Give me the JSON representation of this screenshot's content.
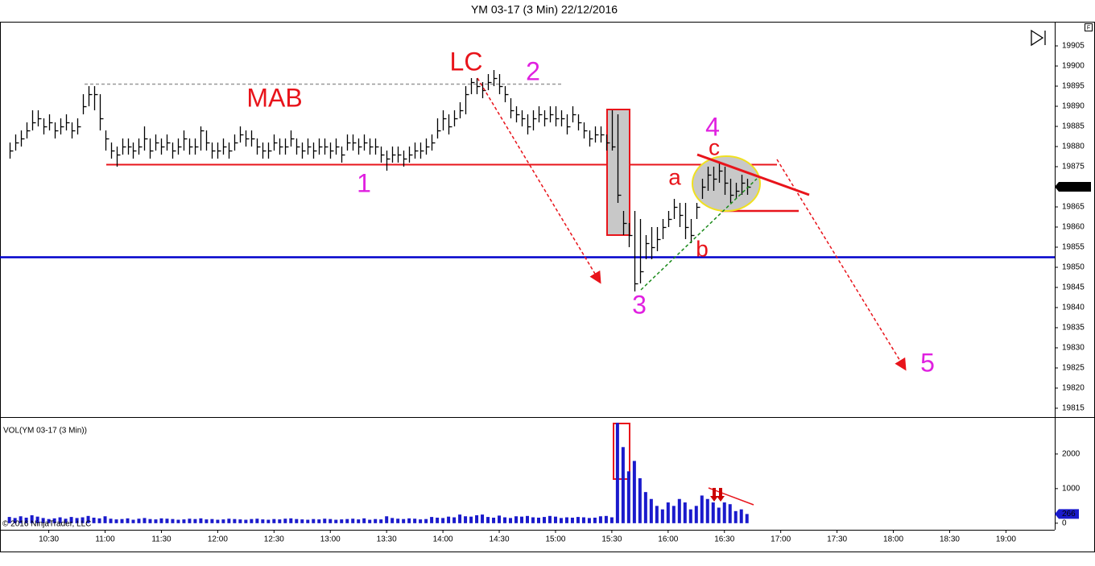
{
  "chart_data": {
    "type": "ohlc",
    "title": "YM 03-17 (3 Min)  22/12/2016",
    "copyright": "© 2016 NinjaTrader, LLC",
    "color": "#000000",
    "x": [
      "10:09",
      "10:12",
      "10:15",
      "10:18",
      "10:21",
      "10:24",
      "10:27",
      "10:30",
      "10:33",
      "10:36",
      "10:39",
      "10:42",
      "10:45",
      "10:48",
      "10:51",
      "10:54",
      "10:57",
      "11:00",
      "11:03",
      "11:06",
      "11:09",
      "11:12",
      "11:15",
      "11:18",
      "11:21",
      "11:24",
      "11:27",
      "11:30",
      "11:33",
      "11:36",
      "11:39",
      "11:42",
      "11:45",
      "11:48",
      "11:51",
      "11:54",
      "11:57",
      "12:00",
      "12:03",
      "12:06",
      "12:09",
      "12:12",
      "12:15",
      "12:18",
      "12:21",
      "12:24",
      "12:27",
      "12:30",
      "12:33",
      "12:36",
      "12:39",
      "12:42",
      "12:45",
      "12:48",
      "12:51",
      "12:54",
      "12:57",
      "13:00",
      "13:03",
      "13:06",
      "13:09",
      "13:12",
      "13:15",
      "13:18",
      "13:21",
      "13:24",
      "13:27",
      "13:30",
      "13:33",
      "13:36",
      "13:39",
      "13:42",
      "13:45",
      "13:48",
      "13:51",
      "13:54",
      "13:57",
      "14:00",
      "14:03",
      "14:06",
      "14:09",
      "14:12",
      "14:15",
      "14:18",
      "14:21",
      "14:24",
      "14:27",
      "14:30",
      "14:33",
      "14:36",
      "14:39",
      "14:42",
      "14:45",
      "14:48",
      "14:51",
      "14:54",
      "14:57",
      "15:00",
      "15:03",
      "15:06",
      "15:09",
      "15:12",
      "15:15",
      "15:18",
      "15:21",
      "15:24",
      "15:27",
      "15:30",
      "15:33",
      "15:36",
      "15:39",
      "15:42",
      "15:45",
      "15:48",
      "15:51",
      "15:54",
      "15:57",
      "16:00",
      "16:03",
      "16:06",
      "16:09",
      "16:12",
      "16:15",
      "16:18",
      "16:21",
      "16:24",
      "16:27",
      "16:30",
      "16:33",
      "16:36",
      "16:39",
      "16:42"
    ],
    "high": [
      19881,
      19883,
      19884,
      19886,
      19889,
      19889,
      19887,
      19888,
      19886,
      19887,
      19888,
      19886,
      19887,
      19893,
      19895,
      19895,
      19893,
      19884,
      19881,
      19880,
      19882,
      19882,
      19881,
      19882,
      19885,
      19882,
      19883,
      19882,
      19883,
      19881,
      19882,
      19884,
      19882,
      19882,
      19885,
      19884,
      19881,
      19881,
      19882,
      19881,
      19883,
      19885,
      19884,
      19884,
      19882,
      19881,
      19881,
      19883,
      19882,
      19882,
      19884,
      19882,
      19881,
      19882,
      19881,
      19882,
      19882,
      19881,
      19882,
      19880,
      19883,
      19883,
      19882,
      19883,
      19882,
      19882,
      19880,
      19879,
      19880,
      19880,
      19879,
      19880,
      19881,
      19881,
      19882,
      19883,
      19887,
      19889,
      19888,
      19889,
      19891,
      19895,
      19897,
      19897,
      19896,
      19898,
      19899,
      19898,
      19895,
      19892,
      19890,
      19889,
      19888,
      19889,
      19890,
      19889,
      19890,
      19890,
      19889,
      19888,
      19890,
      19888,
      19886,
      19884,
      19885,
      19885,
      19883,
      19889,
      19888,
      19864,
      19861,
      19864,
      19862,
      19858,
      19860,
      19860,
      19862,
      19864,
      19867,
      19866,
      19866,
      19862,
      19866,
      19872,
      19875,
      19875,
      19876,
      19875,
      19872,
      19871,
      19873,
      19872
    ],
    "low": [
      19877,
      19879,
      19880,
      19882,
      19884,
      19885,
      19883,
      19884,
      19882,
      19883,
      19884,
      19882,
      19883,
      19888,
      19890,
      19889,
      19884,
      19879,
      19877,
      19875,
      19878,
      19878,
      19877,
      19878,
      19879,
      19877,
      19879,
      19878,
      19879,
      19877,
      19878,
      19879,
      19878,
      19878,
      19879,
      19879,
      19877,
      19877,
      19878,
      19877,
      19879,
      19881,
      19880,
      19880,
      19878,
      19877,
      19877,
      19879,
      19878,
      19878,
      19880,
      19878,
      19877,
      19878,
      19877,
      19878,
      19878,
      19877,
      19878,
      19876,
      19879,
      19879,
      19878,
      19879,
      19878,
      19878,
      19876,
      19874,
      19876,
      19876,
      19875,
      19876,
      19877,
      19877,
      19878,
      19879,
      19882,
      19884,
      19883,
      19885,
      19887,
      19888,
      19893,
      19893,
      19892,
      19894,
      19895,
      19893,
      19891,
      19887,
      19886,
      19885,
      19883,
      19884,
      19886,
      19885,
      19886,
      19885,
      19885,
      19883,
      19886,
      19884,
      19882,
      19880,
      19881,
      19881,
      19879,
      19879,
      19866,
      19858,
      19855,
      19844,
      19846,
      19852,
      19852,
      19854,
      19857,
      19860,
      19862,
      19860,
      19857,
      19856,
      19862,
      19867,
      19869,
      19869,
      19871,
      19868,
      19866,
      19867,
      19868,
      19868
    ],
    "close": [
      19879,
      19881,
      19882,
      19884,
      19886,
      19887,
      19885,
      19886,
      19884,
      19885,
      19886,
      19884,
      19885,
      19890,
      19893,
      19893,
      19887,
      19882,
      19879,
      19878,
      19880,
      19880,
      19879,
      19880,
      19882,
      19879,
      19881,
      19880,
      19881,
      19879,
      19880,
      19882,
      19880,
      19880,
      19884,
      19881,
      19879,
      19879,
      19880,
      19879,
      19881,
      19883,
      19882,
      19882,
      19880,
      19879,
      19879,
      19881,
      19880,
      19880,
      19882,
      19880,
      19879,
      19880,
      19879,
      19880,
      19880,
      19879,
      19880,
      19878,
      19881,
      19881,
      19880,
      19881,
      19880,
      19880,
      19878,
      19877,
      19878,
      19878,
      19877,
      19878,
      19879,
      19879,
      19880,
      19881,
      19884,
      19887,
      19885,
      19887,
      19889,
      19893,
      19896,
      19895,
      19894,
      19896,
      19897,
      19895,
      19893,
      19889,
      19888,
      19887,
      19885,
      19887,
      19888,
      19887,
      19888,
      19887,
      19887,
      19885,
      19888,
      19886,
      19884,
      19882,
      19883,
      19883,
      19881,
      19880,
      19868,
      19861,
      19858,
      19846,
      19849,
      19856,
      19855,
      19857,
      19860,
      19862,
      19865,
      19863,
      19860,
      19858,
      19865,
      19870,
      19873,
      19872,
      19874,
      19871,
      19868,
      19869,
      19871,
      19870
    ],
    "xlim": [
      "10:04",
      "19:26"
    ],
    "xticks": [
      "10:30",
      "11:00",
      "11:30",
      "12:00",
      "12:30",
      "13:00",
      "13:30",
      "14:00",
      "14:30",
      "15:00",
      "15:30",
      "16:00",
      "16:30",
      "17:00",
      "17:30",
      "18:00",
      "18:30",
      "19:00"
    ],
    "ylim": [
      19812.8,
      19910.8
    ],
    "yticks": [
      19815,
      19820,
      19825,
      19830,
      19835,
      19840,
      19845,
      19850,
      19855,
      19860,
      19865,
      19870,
      19875,
      19880,
      19885,
      19890,
      19895,
      19900,
      19905
    ],
    "levels": [
      {
        "value": 19852.5,
        "color": "#0000cc"
      },
      {
        "value": 19875.5,
        "color": "#e8141b"
      },
      {
        "value": 19895.5,
        "color": "#999999"
      },
      {
        "value": 19864,
        "color": "#e8141b"
      }
    ],
    "annotations": [
      {
        "text": "MAB",
        "color": "#e8141b"
      },
      {
        "text": "LC",
        "color": "#e8141b"
      },
      {
        "text": "1",
        "color": "#e020e0"
      },
      {
        "text": "2",
        "color": "#e020e0"
      },
      {
        "text": "3",
        "color": "#e020e0"
      },
      {
        "text": "4",
        "color": "#e020e0"
      },
      {
        "text": "5",
        "color": "#e020e0"
      },
      {
        "text": "a",
        "color": "#e8141b"
      },
      {
        "text": "b",
        "color": "#e8141b"
      },
      {
        "text": "c",
        "color": "#e8141b"
      }
    ],
    "volume": {
      "title": "VOL(YM 03-17 (3 Min))",
      "color": "#1a1acc",
      "values": [
        180,
        150,
        200,
        160,
        230,
        190,
        150,
        120,
        140,
        170,
        130,
        180,
        150,
        170,
        210,
        160,
        140,
        200,
        130,
        110,
        120,
        140,
        100,
        130,
        150,
        120,
        110,
        140,
        130,
        120,
        100,
        110,
        130,
        120,
        140,
        110,
        120,
        100,
        110,
        130,
        120,
        110,
        100,
        120,
        130,
        110,
        100,
        120,
        110,
        130,
        140,
        120,
        110,
        100,
        120,
        110,
        130,
        120,
        100,
        110,
        120,
        130,
        110,
        140,
        100,
        120,
        110,
        200,
        150,
        130,
        120,
        140,
        130,
        110,
        120,
        180,
        160,
        150,
        190,
        170,
        250,
        200,
        190,
        230,
        250,
        180,
        160,
        220,
        170,
        150,
        200,
        190,
        210,
        170,
        160,
        180,
        210,
        190,
        150,
        170,
        160,
        180,
        170,
        150,
        160,
        200,
        210,
        170,
        2900,
        2200,
        1500,
        1800,
        1300,
        900,
        700,
        500,
        400,
        600,
        500,
        700,
        600,
        400,
        500,
        800,
        700,
        600,
        450,
        600,
        550,
        350,
        400,
        266
      ],
      "ylim": [
        -190,
        2975
      ],
      "yticks": [
        0,
        1000,
        2000
      ]
    }
  }
}
